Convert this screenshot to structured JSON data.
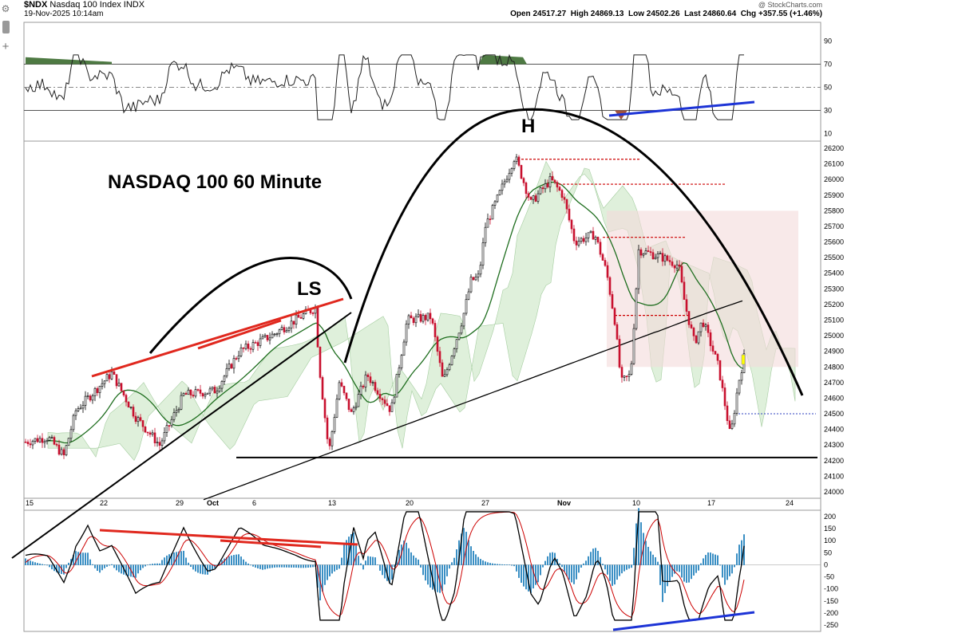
{
  "header": {
    "symbol": "$NDX",
    "name": "Nasdaq 100 Index",
    "exchange": "INDX",
    "datetime": "19-Nov-2025 10:14am",
    "source": "@ StockCharts.com",
    "open_label": "Open",
    "open": "24517.27",
    "high_label": "High",
    "high": "24869.13",
    "low_label": "Low",
    "low": "24502.26",
    "last_label": "Last",
    "last": "24860.64",
    "chg_label": "Chg",
    "chg": "+357.55 (+1.46%)"
  },
  "toolbar": {
    "gear_icon": "gear-icon",
    "panel_icon": "panel-icon",
    "plus_icon": "plus-icon"
  },
  "chart_data": {
    "type": "candlestick",
    "title": "NASDAQ 100 60 Minute",
    "annotations": [
      "LS",
      "H"
    ],
    "x_axis": {
      "tick_labels": [
        "15",
        "22",
        "29",
        "Oct",
        "6",
        "13",
        "20",
        "27",
        "Nov",
        "10",
        "17",
        "24"
      ]
    },
    "panels": [
      {
        "name": "rsi",
        "ylim": [
          0,
          100
        ],
        "y_ticks": [
          10,
          30,
          50,
          70,
          90
        ],
        "reference_lines": [
          30,
          50,
          70
        ],
        "overbought_color": "#4e7a43",
        "oversold_color": "#a0523d"
      },
      {
        "name": "price",
        "ylim": [
          24000,
          26200
        ],
        "y_ticks": [
          24000,
          24100,
          24200,
          24300,
          24400,
          24500,
          24600,
          24700,
          24800,
          24900,
          25000,
          25100,
          25200,
          25300,
          25400,
          25500,
          25600,
          25700,
          25800,
          25900,
          26000,
          26100,
          26200
        ],
        "candle_up_color": "#000000",
        "candle_down_color": "#c8102e",
        "ma_short_color": "#1f6e1f",
        "ma_long_color": "#000000",
        "cloud_bull_color": "#dcefd8",
        "cloud_bear_color": "#f4dada",
        "last_price": 24860.64,
        "dotted_level": 24500,
        "neckline": 24220
      },
      {
        "name": "macd",
        "ylim": [
          -250,
          200
        ],
        "y_ticks": [
          200,
          150,
          100,
          50,
          0,
          -50,
          -100,
          -150,
          -200,
          -250
        ],
        "macd_color": "#000000",
        "signal_color": "#cc0000",
        "histogram_color": "#3a8fc4"
      }
    ]
  }
}
